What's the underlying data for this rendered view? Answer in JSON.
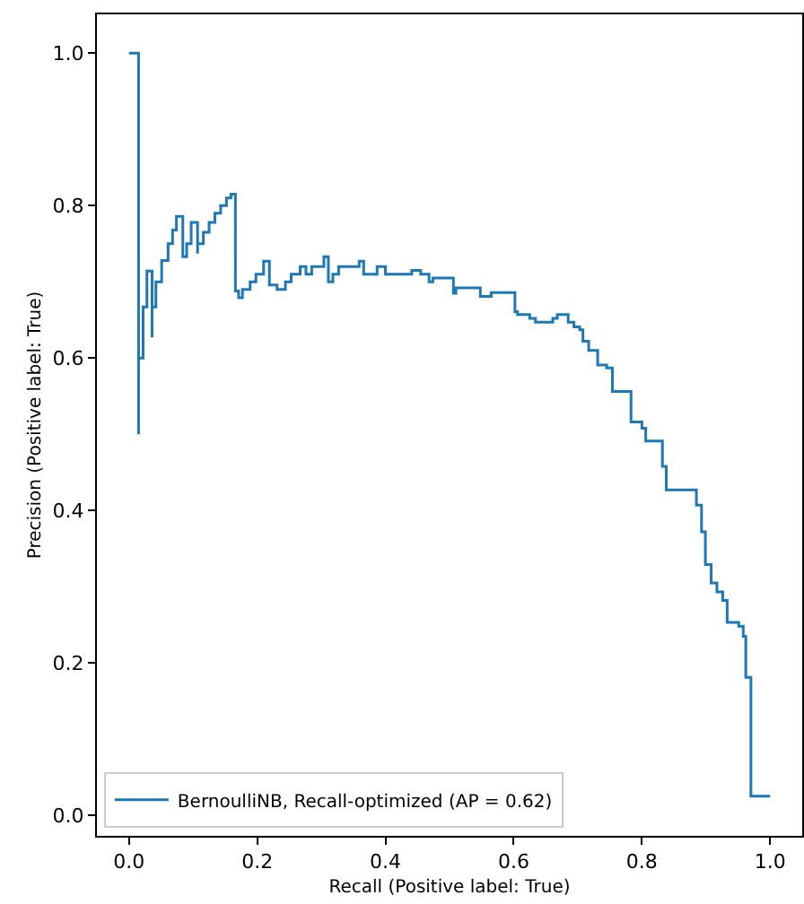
{
  "chart_data": {
    "type": "step",
    "xlabel": "Recall (Positive label: True)",
    "ylabel": "Precision (Positive label: True)",
    "xlim": [
      -0.05,
      1.05
    ],
    "ylim": [
      -0.027,
      1.051
    ],
    "xticks": [
      {
        "value": 0,
        "label": "0.0"
      },
      0.2,
      0.4,
      0.6,
      0.8,
      {
        "value": 1,
        "label": "1.0"
      }
    ],
    "yticks": [
      {
        "value": 0,
        "label": "0.0"
      },
      0.2,
      0.4,
      0.6,
      0.8,
      {
        "value": 1,
        "label": "1.0"
      }
    ],
    "grid": false,
    "legend": "bottom left",
    "marker": "none",
    "line_style": "solid",
    "series": [
      {
        "name": "BernoulliNB, Recall-optimized (AP = 0.62)",
        "color": "#1f77b4",
        "x": [
          0,
          0.015,
          0.015,
          0.022,
          0.028,
          0.036,
          0.036,
          0.042,
          0.051,
          0.061,
          0.068,
          0.074,
          0.084,
          0.09,
          0.097,
          0.107,
          0.107,
          0.116,
          0.125,
          0.134,
          0.143,
          0.152,
          0.159,
          0.166,
          0.171,
          0.177,
          0.189,
          0.198,
          0.21,
          0.219,
          0.231,
          0.244,
          0.253,
          0.267,
          0.276,
          0.285,
          0.304,
          0.311,
          0.318,
          0.327,
          0.359,
          0.366,
          0.387,
          0.4,
          0.441,
          0.455,
          0.468,
          0.474,
          0.506,
          0.51,
          0.548,
          0.565,
          0.602,
          0.606,
          0.625,
          0.634,
          0.661,
          0.668,
          0.685,
          0.694,
          0.703,
          0.708,
          0.717,
          0.731,
          0.745,
          0.754,
          0.783,
          0.8,
          0.806,
          0.832,
          0.838,
          0.885,
          0.893,
          0.899,
          0.908,
          0.917,
          0.926,
          0.933,
          0.951,
          0.958,
          0.962,
          0.97,
          1.0
        ],
        "values": [
          1.0,
          0.5,
          0.6,
          0.667,
          0.714,
          0.627,
          0.667,
          0.7,
          0.728,
          0.75,
          0.768,
          0.786,
          0.733,
          0.75,
          0.778,
          0.737,
          0.75,
          0.765,
          0.778,
          0.79,
          0.8,
          0.81,
          0.815,
          0.688,
          0.679,
          0.69,
          0.7,
          0.71,
          0.727,
          0.696,
          0.69,
          0.7,
          0.71,
          0.72,
          0.71,
          0.72,
          0.733,
          0.7,
          0.71,
          0.72,
          0.727,
          0.71,
          0.72,
          0.71,
          0.715,
          0.71,
          0.7,
          0.705,
          0.685,
          0.692,
          0.681,
          0.686,
          0.661,
          0.657,
          0.652,
          0.647,
          0.652,
          0.657,
          0.647,
          0.641,
          0.637,
          0.622,
          0.61,
          0.591,
          0.587,
          0.556,
          0.516,
          0.508,
          0.491,
          0.458,
          0.427,
          0.407,
          0.372,
          0.329,
          0.305,
          0.293,
          0.282,
          0.253,
          0.248,
          0.235,
          0.181,
          0.025,
          0.025
        ]
      }
    ]
  }
}
